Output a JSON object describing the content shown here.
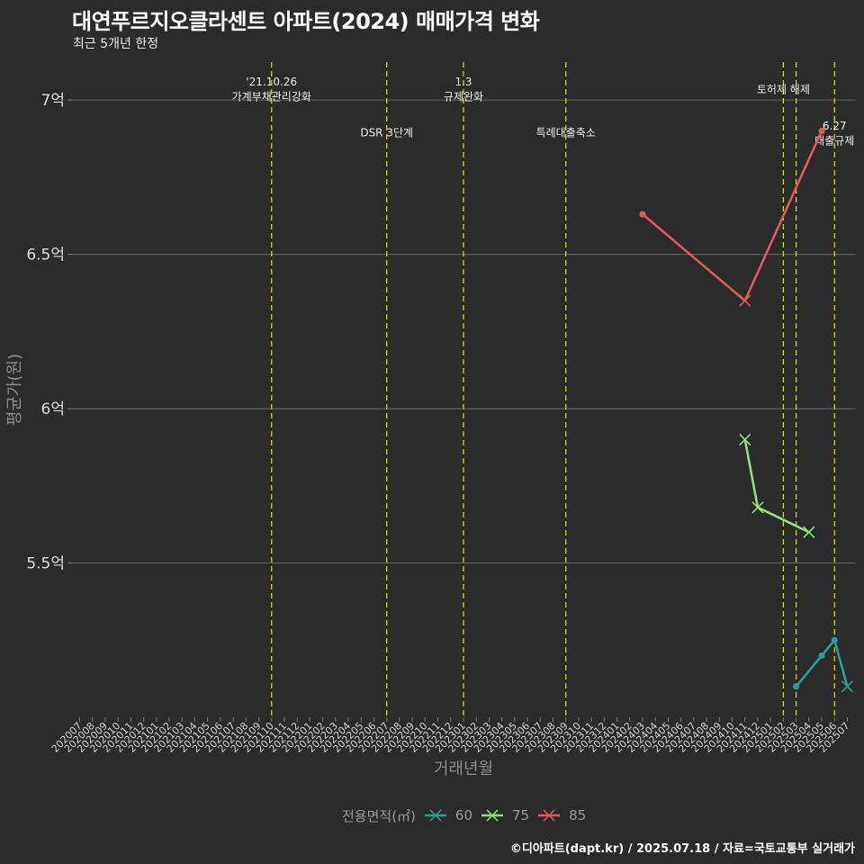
{
  "header": {
    "title": "대연푸르지오클라센트 아파트(2024) 매매가격 변화",
    "subtitle": "최근 5개년 한정"
  },
  "caption": "©디아파트(dapt.kr) / 2025.07.18 / 자료=국토교통부 실거래가",
  "legend": {
    "title": "전용면적(㎡)",
    "items": [
      {
        "label": "60",
        "color": "#2a9d96"
      },
      {
        "label": "75",
        "color": "#8ee07a"
      },
      {
        "label": "85",
        "color": "#e05a5a"
      }
    ]
  },
  "chart_data": {
    "type": "line",
    "title": "대연푸르지오클라센트 아파트(2024) 매매가격 변화",
    "subtitle": "최근 5개년 한정",
    "xlabel": "거래년월",
    "ylabel": "평균가(원)",
    "ylim": [
      5.0,
      7.123
    ],
    "grid": {
      "horizontal": true,
      "vertical": false
    },
    "legend_position": "bottom",
    "x": [
      "202007",
      "202008",
      "202009",
      "202010",
      "202011",
      "202012",
      "202101",
      "202102",
      "202103",
      "202104",
      "202105",
      "202106",
      "202107",
      "202108",
      "202109",
      "202110",
      "202111",
      "202112",
      "202201",
      "202202",
      "202203",
      "202204",
      "202205",
      "202206",
      "202207",
      "202208",
      "202209",
      "202210",
      "202211",
      "202212",
      "202301",
      "202302",
      "202303",
      "202304",
      "202305",
      "202306",
      "202307",
      "202308",
      "202309",
      "202310",
      "202311",
      "202312",
      "202401",
      "202402",
      "202403",
      "202404",
      "202405",
      "202406",
      "202407",
      "202408",
      "202409",
      "202410",
      "202411",
      "202412",
      "202501",
      "202502",
      "202503",
      "202504",
      "202505",
      "202506",
      "202507"
    ],
    "y_ticks": [
      {
        "value": 5.5,
        "label": "5.5억"
      },
      {
        "value": 6.0,
        "label": "6억"
      },
      {
        "value": 6.5,
        "label": "6.5억"
      },
      {
        "value": 7.0,
        "label": "7억"
      }
    ],
    "series": [
      {
        "name": "60",
        "color": "#2a9d96",
        "points": [
          {
            "x": "202503",
            "y": 5.1,
            "marker": "circle"
          },
          {
            "x": "202505",
            "y": 5.2,
            "marker": "circle"
          },
          {
            "x": "202506",
            "y": 5.25,
            "marker": "circle"
          },
          {
            "x": "202507",
            "y": 5.1,
            "marker": "x"
          }
        ]
      },
      {
        "name": "75",
        "color": "#8ee07a",
        "points": [
          {
            "x": "202411",
            "y": 5.9,
            "marker": "x"
          },
          {
            "x": "202412",
            "y": 5.68,
            "marker": "x"
          },
          {
            "x": "202504",
            "y": 5.6,
            "marker": "x"
          }
        ]
      },
      {
        "name": "85",
        "color": "#e05a5a",
        "points": [
          {
            "x": "202403",
            "y": 6.63,
            "marker": "circle"
          },
          {
            "x": "202411",
            "y": 6.35,
            "marker": "x"
          },
          {
            "x": "202505",
            "y": 6.9,
            "marker": "circle"
          }
        ]
      }
    ],
    "annotations": [
      {
        "x": "202110",
        "lines": [
          "'21.10.26",
          "가계부채관리강화"
        ],
        "y": 7.036
      },
      {
        "x": "202207",
        "lines": [
          "DSR 3단계"
        ],
        "y": 6.896
      },
      {
        "x": "202301",
        "lines": [
          "1.3",
          "규제완화"
        ],
        "y": 7.036
      },
      {
        "x": "202309",
        "lines": [
          "특례대출축소"
        ],
        "y": 6.896
      },
      {
        "x": "202502",
        "lines": [
          "토허제 해제"
        ],
        "y": 7.036
      },
      {
        "x": "202503",
        "lines": [],
        "y": null
      },
      {
        "x": "202506",
        "lines": [
          "6.27",
          "대출규제"
        ],
        "y": 6.894
      }
    ],
    "annotation_line_color": "#d4d400"
  }
}
